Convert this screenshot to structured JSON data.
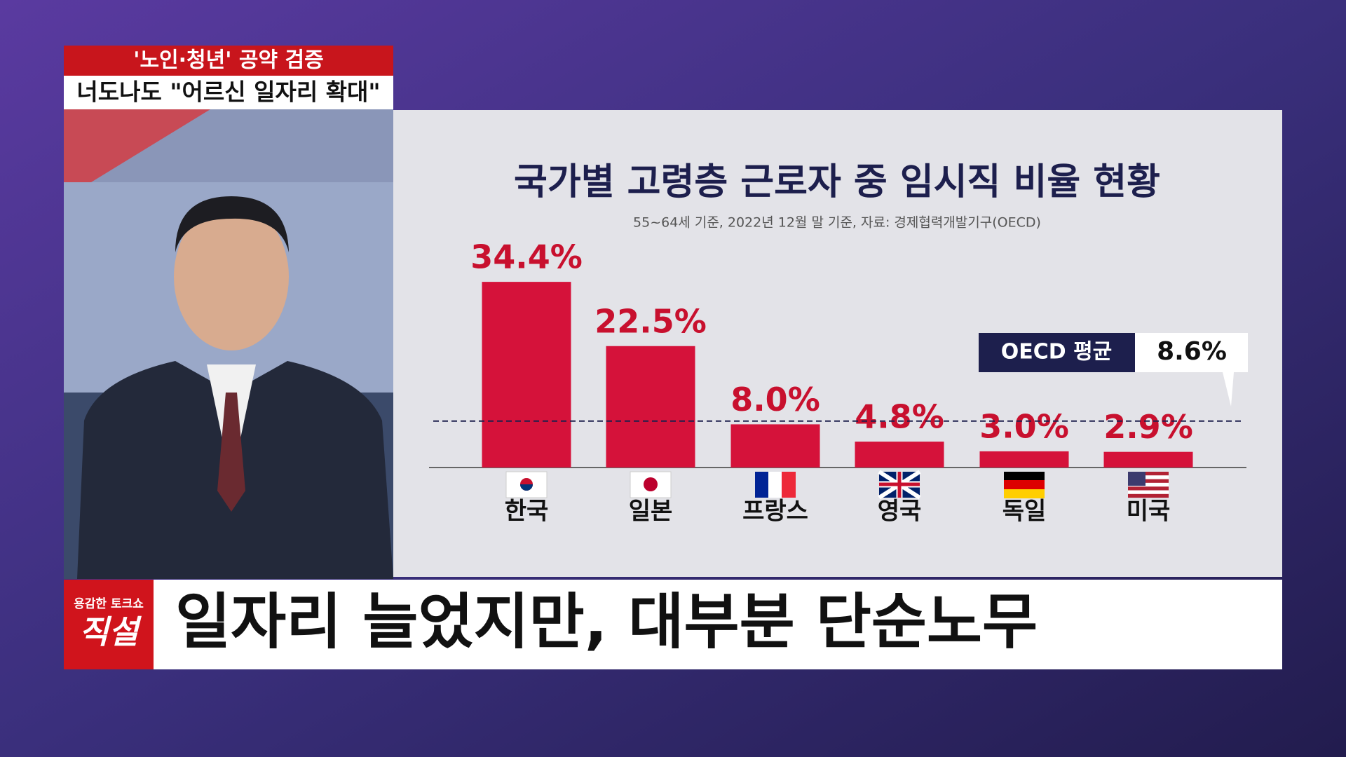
{
  "header": {
    "topic": "'노인·청년' 공약 검증",
    "headline": "너도나도 \"어르신 일자리 확대\""
  },
  "chart_data": {
    "type": "bar",
    "title": "국가별 고령층 근로자 중 임시직 비율 현황",
    "subtitle": "55~64세 기준, 2022년 12월 말 기준, 자료: 경제협력개발기구(OECD)",
    "categories": [
      "한국",
      "일본",
      "프랑스",
      "영국",
      "독일",
      "미국"
    ],
    "values": [
      34.4,
      22.5,
      8.0,
      4.8,
      3.0,
      2.9
    ],
    "value_labels": [
      "34.4%",
      "22.5%",
      "8.0%",
      "4.8%",
      "3.0%",
      "2.9%"
    ],
    "color": "#d5123a",
    "ylim": [
      0,
      40
    ],
    "reference_line": {
      "label": "OECD 평균",
      "value": 8.6,
      "value_label": "8.6%"
    }
  },
  "caption": {
    "show_tag": "용감한 토크쇼",
    "show_name": "직설",
    "text": "일자리 늘었지만, 대부분 단순노무"
  }
}
